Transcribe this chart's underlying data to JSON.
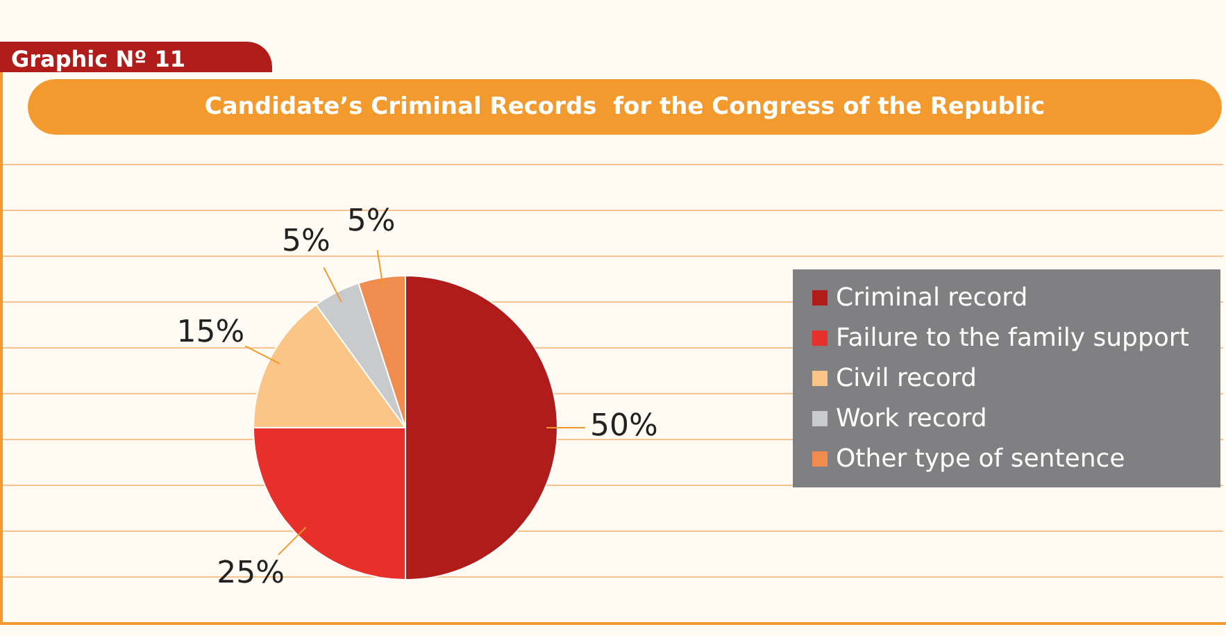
{
  "chart_data": {
    "type": "pie",
    "title": "Candidate’s Criminal Records  for the Congress of the Republic",
    "annotations": [
      "Graphic Nº 11"
    ],
    "categories": [
      "Criminal record",
      "Failure to the family support",
      "Civil record",
      "Work record",
      "Other type of sentence"
    ],
    "values": [
      50,
      25,
      15,
      5,
      5
    ],
    "colors": [
      "#b01c1a",
      "#e8302a",
      "#fbc588",
      "#c9cacc",
      "#f08c4e"
    ],
    "value_labels": [
      "50%",
      "25%",
      "15%",
      "5%",
      "5%"
    ],
    "legend": "right"
  }
}
